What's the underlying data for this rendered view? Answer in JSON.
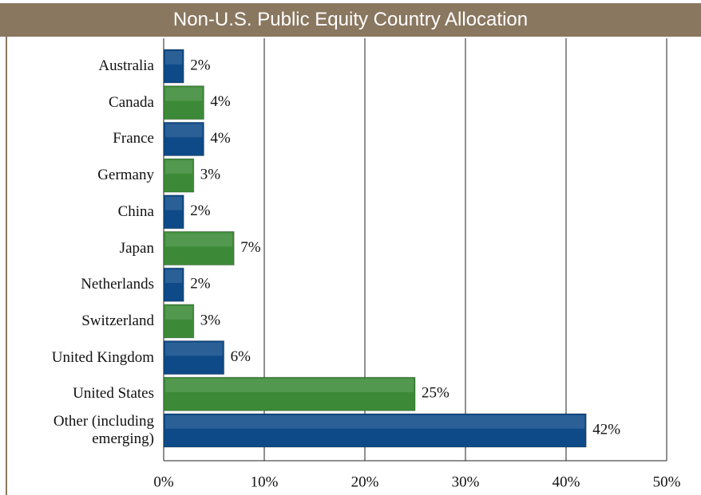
{
  "chart_data": {
    "type": "bar",
    "orientation": "horizontal",
    "title": "Non-U.S. Public Equity Country Allocation",
    "categories": [
      "Australia",
      "Canada",
      "France",
      "Germany",
      "China",
      "Japan",
      "Netherlands",
      "Switzerland",
      "United Kingdom",
      "United States",
      "Other (including emerging)"
    ],
    "values": [
      2,
      4,
      4,
      3,
      2,
      7,
      2,
      3,
      6,
      25,
      42
    ],
    "value_labels": [
      "2%",
      "4%",
      "4%",
      "3%",
      "2%",
      "7%",
      "2%",
      "3%",
      "6%",
      "25%",
      "42%"
    ],
    "colors": [
      "#0e4a88",
      "#3c8a37",
      "#0e4a88",
      "#3c8a37",
      "#0e4a88",
      "#3c8a37",
      "#0e4a88",
      "#3c8a37",
      "#0e4a88",
      "#3c8a37",
      "#0e4a88"
    ],
    "xlim": [
      0,
      50
    ],
    "xticks": [
      {
        "value": 0,
        "label": "0%"
      },
      {
        "value": 10,
        "label": "10%"
      },
      {
        "value": 20,
        "label": "20%"
      },
      {
        "value": 30,
        "label": "30%"
      },
      {
        "value": 40,
        "label": "40%"
      },
      {
        "value": 50,
        "label": "50%"
      }
    ],
    "grid": true
  }
}
